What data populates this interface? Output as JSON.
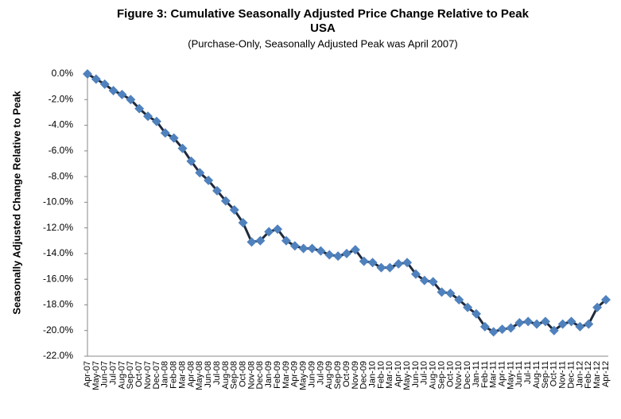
{
  "chart_data": {
    "type": "line",
    "title": "Figure 3: Cumulative Seasonally Adjusted Price Change Relative to Peak",
    "title_line2": "USA",
    "subtitle": "(Purchase-Only, Seasonally Adjusted Peak was April 2007)",
    "y_label": "Seasonally Adjusted Change Relative to Peak",
    "categories": [
      "Apr-07",
      "May-07",
      "Jun-07",
      "Jul-07",
      "Aug-07",
      "Sep-07",
      "Oct-07",
      "Nov-07",
      "Dec-07",
      "Jan-08",
      "Feb-08",
      "Mar-08",
      "Apr-08",
      "May-08",
      "Jun-08",
      "Jul-08",
      "Aug-08",
      "Sep-08",
      "Oct-08",
      "Nov-08",
      "Dec-08",
      "Jan-09",
      "Feb-09",
      "Mar-09",
      "Apr-09",
      "May-09",
      "Jun-09",
      "Jul-09",
      "Aug-09",
      "Sep-09",
      "Oct-09",
      "Nov-09",
      "Dec-09",
      "Jan-10",
      "Feb-10",
      "Mar-10",
      "Apr-10",
      "May-10",
      "Jun-10",
      "Jul-10",
      "Aug-10",
      "Sep-10",
      "Oct-10",
      "Nov-10",
      "Dec-10",
      "Jan-11",
      "Feb-11",
      "Mar-11",
      "Apr-11",
      "May-11",
      "Jun-11",
      "Jul-11",
      "Aug-11",
      "Sep-11",
      "Oct-11",
      "Nov-11",
      "Dec-11",
      "Jan-12",
      "Feb-12",
      "Mar-12",
      "Apr-12"
    ],
    "values": [
      0,
      -0.4,
      -0.8,
      -1.3,
      -1.6,
      -2.0,
      -2.7,
      -3.3,
      -3.7,
      -4.6,
      -5.0,
      -5.8,
      -6.8,
      -7.7,
      -8.3,
      -9.1,
      -9.9,
      -10.6,
      -11.6,
      -13.1,
      -13.0,
      -12.3,
      -12.1,
      -13.0,
      -13.4,
      -13.6,
      -13.6,
      -13.8,
      -14.1,
      -14.2,
      -14.0,
      -13.7,
      -14.6,
      -14.7,
      -15.1,
      -15.1,
      -14.8,
      -14.7,
      -15.6,
      -16.1,
      -16.2,
      -17.0,
      -17.1,
      -17.6,
      -18.2,
      -18.7,
      -19.7,
      -20.1,
      -19.9,
      -19.8,
      -19.4,
      -19.3,
      -19.5,
      -19.3,
      -20.0,
      -19.5,
      -19.3,
      -19.7,
      -19.5,
      -18.2,
      -17.6
    ],
    "line_color": "#1f2a3c",
    "marker_color": "#4f81bd",
    "ylim": [
      -22,
      0
    ],
    "yticks": [
      {
        "value": 0,
        "label": "0.0%"
      },
      {
        "value": -2,
        "label": "-2.0%"
      },
      {
        "value": -4,
        "label": "-4.0%"
      },
      {
        "value": -6,
        "label": "-6.0%"
      },
      {
        "value": -8,
        "label": "-8.0%"
      },
      {
        "value": -10,
        "label": "-10.0%"
      },
      {
        "value": -12,
        "label": "-12.0%"
      },
      {
        "value": -14,
        "label": "-14.0%"
      },
      {
        "value": -16,
        "label": "-16.0%"
      },
      {
        "value": -18,
        "label": "-18.0%"
      },
      {
        "value": -20,
        "label": "-20.0%"
      },
      {
        "value": -22,
        "label": "-22.0%"
      }
    ],
    "grid": false
  }
}
